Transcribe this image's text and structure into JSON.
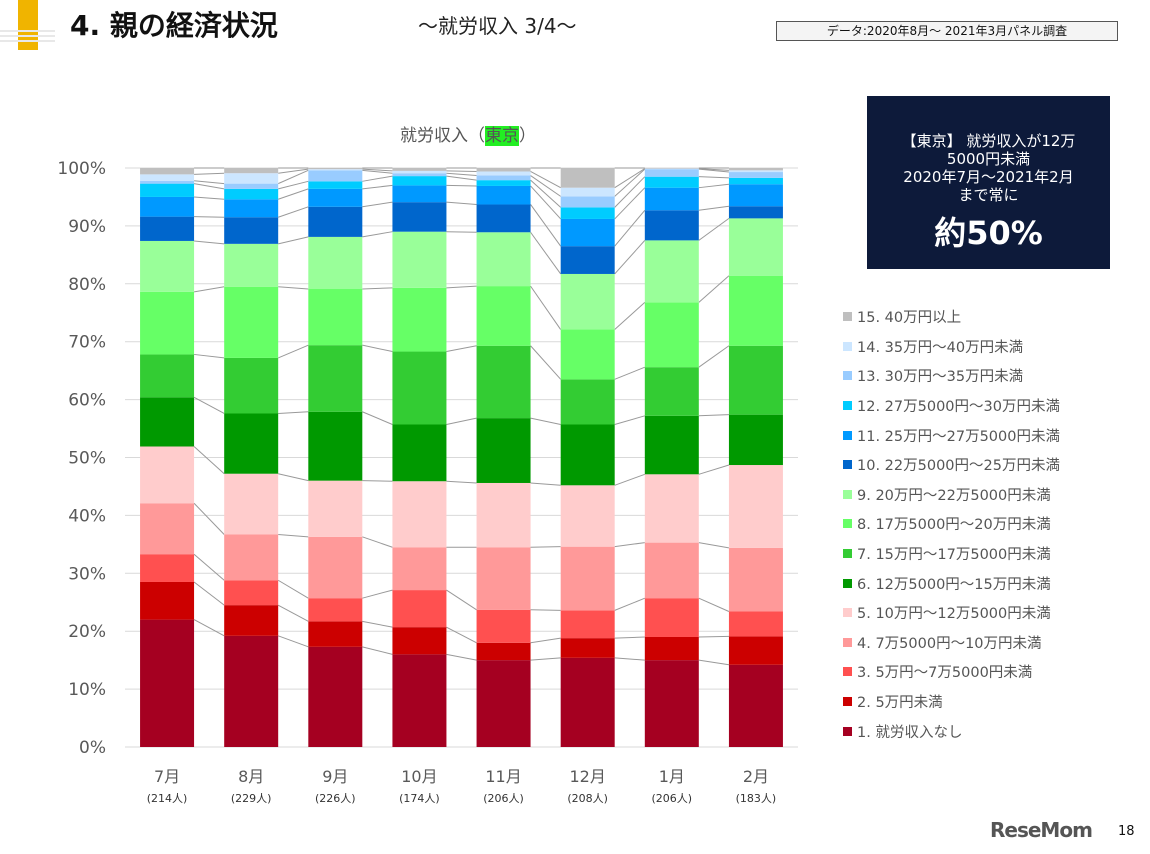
{
  "header": {
    "title": "4. 親の経済状況",
    "subtitle": "～就労収入 3/4～",
    "source": "データ:2020年8月～ 2021年3月パネル調査"
  },
  "callout": {
    "text": "【東京】 就労収入が12万\n5000円未満\n2020年7月～2021年2月\nまで常に",
    "highlight": "約50%"
  },
  "chart_data": {
    "type": "bar",
    "stacked": true,
    "normalized": true,
    "title_prefix": "就労収入（",
    "title_highlight": "東京",
    "title_suffix": "）",
    "categories": [
      "7月",
      "8月",
      "9月",
      "10月",
      "11月",
      "12月",
      "1月",
      "2月"
    ],
    "category_sublabels": [
      "(214人)",
      "(229人)",
      "(226人)",
      "(174人)",
      "(206人)",
      "(208人)",
      "(206人)",
      "(183人)"
    ],
    "ylim": [
      0,
      100
    ],
    "yticks": [
      "0%",
      "10%",
      "20%",
      "30%",
      "40%",
      "50%",
      "60%",
      "70%",
      "80%",
      "90%",
      "100%"
    ],
    "grid": true,
    "legend_position": "right",
    "series": [
      {
        "name": "1. 就労収入なし",
        "color": "#A50021",
        "values": [
          22.0,
          19.2,
          17.3,
          16.0,
          15.0,
          15.4,
          15.0,
          14.2
        ]
      },
      {
        "name": "2. 5万円未満",
        "color": "#CC0000",
        "values": [
          6.5,
          5.3,
          4.4,
          4.7,
          3.0,
          3.4,
          4.0,
          4.9
        ]
      },
      {
        "name": "3. 5万円～7万5000円未満",
        "color": "#FF5050",
        "values": [
          4.8,
          4.3,
          4.0,
          6.4,
          5.7,
          4.8,
          6.7,
          4.3
        ]
      },
      {
        "name": "4. 7万5000円～10万円未満",
        "color": "#FF9999",
        "values": [
          8.8,
          7.9,
          10.6,
          7.4,
          10.8,
          11.0,
          9.6,
          11.0
        ]
      },
      {
        "name": "5. 10万円～12万5000円未満",
        "color": "#FFCCCC",
        "values": [
          9.8,
          10.5,
          9.7,
          11.4,
          11.1,
          10.6,
          11.8,
          14.3
        ]
      },
      {
        "name": "6. 12万5000円～15万円未満",
        "color": "#009900",
        "values": [
          8.5,
          10.4,
          11.9,
          9.8,
          11.2,
          10.5,
          10.1,
          8.7
        ]
      },
      {
        "name": "7. 15万円～17万5000円未満",
        "color": "#33CC33",
        "values": [
          7.4,
          9.6,
          11.5,
          12.6,
          12.5,
          7.8,
          8.4,
          11.9
        ]
      },
      {
        "name": "8. 17万5000円～20万円未満",
        "color": "#66FF66",
        "values": [
          10.8,
          12.3,
          9.7,
          11.0,
          10.3,
          8.6,
          11.2,
          12.1
        ]
      },
      {
        "name": "9. 20万円～22万5000円未満",
        "color": "#99FF99",
        "values": [
          8.8,
          7.4,
          9.0,
          9.7,
          9.3,
          9.6,
          10.7,
          9.9
        ]
      },
      {
        "name": "10. 22万5000円～25万円未満",
        "color": "#0066CC",
        "values": [
          4.2,
          4.6,
          5.2,
          5.1,
          4.8,
          4.8,
          5.2,
          2.1
        ]
      },
      {
        "name": "11. 25万円～27万5000円未満",
        "color": "#0099FF",
        "values": [
          3.4,
          3.1,
          3.1,
          2.9,
          3.2,
          4.7,
          3.9,
          3.8
        ]
      },
      {
        "name": "12. 27万5000円～30万円未満",
        "color": "#00CCFF",
        "values": [
          2.3,
          1.8,
          1.3,
          1.6,
          1.0,
          2.0,
          1.9,
          1.1
        ]
      },
      {
        "name": "13. 30万円～35万円未満",
        "color": "#99CCFF",
        "values": [
          0.5,
          0.9,
          1.9,
          0.5,
          0.8,
          1.9,
          1.3,
          1.0
        ]
      },
      {
        "name": "14. 35万円～40万円未満",
        "color": "#CCE6FF",
        "values": [
          1.1,
          1.8,
          0.2,
          0.4,
          0.7,
          1.5,
          0.1,
          0.3
        ]
      },
      {
        "name": "15. 40万円以上",
        "color": "#BFBFBF",
        "values": [
          1.1,
          0.9,
          0.2,
          0.5,
          0.6,
          3.4,
          0.1,
          0.4
        ]
      }
    ]
  },
  "footer": {
    "logo": "ReseMom",
    "page": "18"
  },
  "colors": {
    "accent": "#F0B400",
    "callout_bg": "#0D1A3A",
    "title_highlight": "#22EE22"
  }
}
